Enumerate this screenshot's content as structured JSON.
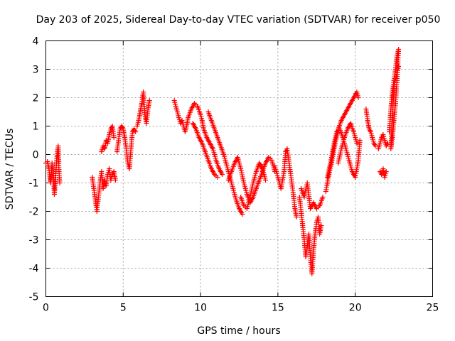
{
  "chart_data": {
    "type": "scatter",
    "title": "Day 203 of 2025, Sidereal Day-to-day VTEC variation (SDTVAR) for receiver p050",
    "xlabel": "GPS time / hours",
    "ylabel": "SDTVAR / TECUs",
    "xlim": [
      0,
      25
    ],
    "ylim": [
      -5,
      4
    ],
    "x_ticks": [
      "0",
      "5",
      "10",
      "15",
      "20",
      "25"
    ],
    "y_ticks": [
      "-5",
      "-4",
      "-3",
      "-2",
      "-1",
      "0",
      "1",
      "2",
      "3",
      "4"
    ],
    "grid": true,
    "marker": "plus",
    "color": "#ff0000",
    "series": [
      {
        "name": "p050",
        "segments": [
          [
            [
              0.0,
              -0.3
            ],
            [
              0.1,
              -0.25
            ],
            [
              0.2,
              -0.5
            ],
            [
              0.3,
              -1.0
            ],
            [
              0.35,
              -0.7
            ],
            [
              0.4,
              -0.3
            ],
            [
              0.5,
              -0.8
            ],
            [
              0.55,
              -1.4
            ],
            [
              0.6,
              -1.1
            ],
            [
              0.65,
              -0.6
            ],
            [
              0.7,
              -0.2
            ],
            [
              0.75,
              0.1
            ],
            [
              0.8,
              0.3
            ],
            [
              0.85,
              -0.6
            ],
            [
              0.9,
              -1.0
            ]
          ],
          [
            [
              3.0,
              -0.8
            ],
            [
              3.1,
              -1.2
            ],
            [
              3.2,
              -1.6
            ],
            [
              3.3,
              -2.0
            ],
            [
              3.4,
              -1.5
            ],
            [
              3.5,
              -1.0
            ],
            [
              3.6,
              -0.6
            ],
            [
              3.7,
              -1.2
            ],
            [
              3.8,
              -0.9
            ],
            [
              3.9,
              -1.1
            ],
            [
              4.0,
              -0.7
            ],
            [
              4.1,
              -0.5
            ],
            [
              4.2,
              -0.9
            ],
            [
              4.3,
              -0.7
            ],
            [
              4.4,
              -0.6
            ],
            [
              4.5,
              -0.9
            ]
          ],
          [
            [
              3.6,
              0.1
            ],
            [
              3.7,
              0.3
            ],
            [
              3.8,
              0.2
            ],
            [
              3.9,
              0.5
            ],
            [
              4.0,
              0.4
            ],
            [
              4.1,
              0.7
            ],
            [
              4.2,
              0.9
            ],
            [
              4.3,
              1.0
            ],
            [
              4.4,
              0.6
            ]
          ],
          [
            [
              4.6,
              0.1
            ],
            [
              4.7,
              0.5
            ],
            [
              4.8,
              0.9
            ],
            [
              4.9,
              1.0
            ],
            [
              5.0,
              0.9
            ],
            [
              5.1,
              0.6
            ],
            [
              5.2,
              0.2
            ],
            [
              5.3,
              -0.3
            ],
            [
              5.4,
              -0.5
            ],
            [
              5.5,
              0.2
            ],
            [
              5.6,
              0.8
            ],
            [
              5.7,
              0.9
            ],
            [
              5.8,
              0.8
            ]
          ],
          [
            [
              5.9,
              1.0
            ],
            [
              6.0,
              1.2
            ],
            [
              6.1,
              1.5
            ],
            [
              6.2,
              1.8
            ],
            [
              6.3,
              2.2
            ],
            [
              6.4,
              1.4
            ],
            [
              6.5,
              1.1
            ],
            [
              6.6,
              1.6
            ],
            [
              6.7,
              1.9
            ]
          ],
          [
            [
              8.3,
              1.9
            ],
            [
              8.4,
              1.7
            ],
            [
              8.5,
              1.5
            ],
            [
              8.6,
              1.3
            ],
            [
              8.7,
              1.1
            ],
            [
              8.8,
              1.2
            ],
            [
              8.9,
              1.0
            ],
            [
              9.0,
              0.8
            ],
            [
              9.1,
              1.0
            ],
            [
              9.2,
              1.3
            ],
            [
              9.4,
              1.6
            ],
            [
              9.6,
              1.8
            ],
            [
              9.8,
              1.7
            ],
            [
              10.0,
              1.4
            ],
            [
              10.1,
              1.2
            ],
            [
              10.2,
              0.9
            ],
            [
              10.4,
              0.6
            ],
            [
              10.6,
              0.4
            ],
            [
              10.8,
              0.2
            ],
            [
              11.0,
              -0.2
            ],
            [
              11.2,
              -0.5
            ],
            [
              11.4,
              -0.7
            ]
          ],
          [
            [
              9.5,
              1.1
            ],
            [
              9.7,
              0.9
            ],
            [
              9.9,
              0.6
            ],
            [
              10.1,
              0.4
            ],
            [
              10.3,
              0.1
            ],
            [
              10.5,
              -0.2
            ],
            [
              10.7,
              -0.5
            ],
            [
              10.9,
              -0.7
            ],
            [
              11.1,
              -0.8
            ]
          ],
          [
            [
              10.5,
              1.5
            ],
            [
              10.7,
              1.2
            ],
            [
              10.9,
              0.9
            ],
            [
              11.1,
              0.6
            ],
            [
              11.3,
              0.3
            ],
            [
              11.5,
              0.0
            ],
            [
              11.7,
              -0.4
            ],
            [
              11.9,
              -0.8
            ],
            [
              12.1,
              -1.2
            ],
            [
              12.3,
              -1.6
            ],
            [
              12.5,
              -1.9
            ],
            [
              12.7,
              -2.1
            ]
          ],
          [
            [
              11.8,
              -0.9
            ],
            [
              12.0,
              -0.6
            ],
            [
              12.2,
              -0.3
            ],
            [
              12.4,
              -0.1
            ],
            [
              12.6,
              -0.5
            ],
            [
              12.8,
              -1.0
            ],
            [
              13.0,
              -1.4
            ],
            [
              13.2,
              -1.7
            ],
            [
              13.4,
              -1.5
            ],
            [
              13.6,
              -1.2
            ],
            [
              13.8,
              -0.9
            ],
            [
              14.0,
              -0.6
            ],
            [
              14.2,
              -0.3
            ],
            [
              14.4,
              -0.1
            ],
            [
              14.6,
              -0.2
            ],
            [
              14.8,
              -0.6
            ]
          ],
          [
            [
              12.6,
              -1.5
            ],
            [
              12.8,
              -1.8
            ],
            [
              13.0,
              -1.9
            ],
            [
              13.2,
              -1.5
            ],
            [
              13.4,
              -1.0
            ],
            [
              13.6,
              -0.6
            ],
            [
              13.8,
              -0.3
            ],
            [
              14.0,
              -0.5
            ],
            [
              14.2,
              -0.9
            ]
          ],
          [
            [
              14.8,
              -0.4
            ],
            [
              15.0,
              -0.8
            ],
            [
              15.2,
              -1.2
            ],
            [
              15.4,
              -0.6
            ],
            [
              15.5,
              0.1
            ],
            [
              15.6,
              0.2
            ],
            [
              15.8,
              -0.6
            ],
            [
              16.0,
              -1.4
            ],
            [
              16.1,
              -1.9
            ],
            [
              16.2,
              -2.2
            ]
          ],
          [
            [
              16.4,
              -1.5
            ],
            [
              16.6,
              -2.5
            ],
            [
              16.7,
              -3.0
            ],
            [
              16.8,
              -3.6
            ],
            [
              16.9,
              -3.2
            ],
            [
              17.0,
              -2.8
            ],
            [
              17.1,
              -3.6
            ],
            [
              17.2,
              -4.2
            ],
            [
              17.3,
              -3.4
            ],
            [
              17.4,
              -2.8
            ],
            [
              17.5,
              -2.4
            ],
            [
              17.6,
              -2.2
            ],
            [
              17.7,
              -2.8
            ],
            [
              17.8,
              -2.5
            ]
          ],
          [
            [
              16.5,
              -1.2
            ],
            [
              16.7,
              -1.5
            ],
            [
              16.9,
              -1.0
            ],
            [
              17.1,
              -1.9
            ],
            [
              17.3,
              -1.7
            ],
            [
              17.5,
              -1.9
            ],
            [
              17.7,
              -1.8
            ],
            [
              17.9,
              -1.5
            ]
          ],
          [
            [
              18.1,
              -1.3
            ],
            [
              18.3,
              -0.7
            ],
            [
              18.5,
              -0.2
            ],
            [
              18.7,
              0.4
            ],
            [
              18.9,
              0.9
            ],
            [
              19.1,
              1.2
            ],
            [
              19.3,
              1.4
            ],
            [
              19.5,
              1.6
            ],
            [
              19.7,
              1.8
            ],
            [
              19.9,
              2.0
            ],
            [
              20.1,
              2.2
            ],
            [
              20.2,
              2.0
            ]
          ],
          [
            [
              18.2,
              -0.8
            ],
            [
              18.4,
              -0.3
            ],
            [
              18.6,
              0.3
            ],
            [
              18.8,
              0.8
            ],
            [
              19.0,
              0.9
            ],
            [
              19.2,
              0.6
            ],
            [
              19.4,
              0.2
            ],
            [
              19.6,
              -0.2
            ],
            [
              19.8,
              -0.6
            ],
            [
              20.0,
              -0.8
            ],
            [
              20.2,
              -0.2
            ],
            [
              20.3,
              0.5
            ]
          ],
          [
            [
              18.9,
              -0.3
            ],
            [
              19.1,
              0.2
            ],
            [
              19.3,
              0.6
            ],
            [
              19.5,
              0.9
            ],
            [
              19.7,
              1.1
            ],
            [
              19.9,
              0.8
            ],
            [
              20.1,
              0.4
            ]
          ],
          [
            [
              20.7,
              1.6
            ],
            [
              20.8,
              1.2
            ],
            [
              20.9,
              0.9
            ],
            [
              21.0,
              0.8
            ],
            [
              21.1,
              0.6
            ],
            [
              21.2,
              0.4
            ],
            [
              21.3,
              0.3
            ]
          ],
          [
            [
              21.5,
              0.2
            ],
            [
              21.6,
              0.4
            ],
            [
              21.7,
              0.6
            ],
            [
              21.8,
              0.7
            ],
            [
              21.9,
              0.5
            ],
            [
              22.0,
              0.3
            ],
            [
              22.1,
              0.4
            ]
          ],
          [
            [
              21.6,
              -0.6
            ],
            [
              21.7,
              -0.7
            ],
            [
              21.8,
              -0.5
            ],
            [
              21.9,
              -0.8
            ],
            [
              22.0,
              -0.6
            ]
          ],
          [
            [
              22.2,
              0.8
            ],
            [
              22.3,
              1.6
            ],
            [
              22.4,
              2.2
            ],
            [
              22.5,
              2.6
            ],
            [
              22.6,
              3.0
            ],
            [
              22.7,
              3.5
            ],
            [
              22.8,
              3.7
            ],
            [
              22.7,
              2.6
            ],
            [
              22.6,
              1.8
            ],
            [
              22.5,
              1.2
            ],
            [
              22.4,
              0.6
            ],
            [
              22.3,
              0.2
            ],
            [
              22.5,
              2.4
            ],
            [
              22.8,
              3.1
            ]
          ]
        ]
      }
    ]
  }
}
